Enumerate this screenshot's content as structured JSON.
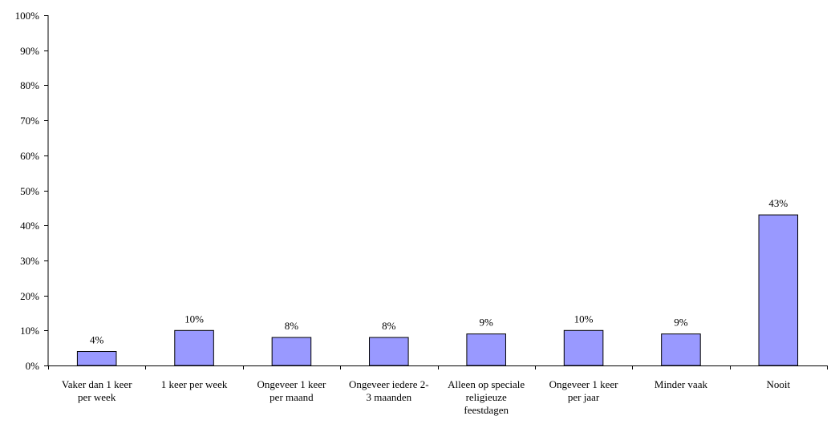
{
  "chart_data": {
    "type": "bar",
    "title": "",
    "xlabel": "",
    "ylabel": "",
    "ylim": [
      0,
      100
    ],
    "y_ticks": [
      "0%",
      "10%",
      "20%",
      "30%",
      "40%",
      "50%",
      "60%",
      "70%",
      "80%",
      "90%",
      "100%"
    ],
    "grid": false,
    "legend": "none",
    "bar_color": "#9999ff",
    "categories": [
      [
        "Vaker dan 1 keer",
        "per week"
      ],
      [
        "1 keer per week"
      ],
      [
        "Ongeveer 1 keer",
        "per maand"
      ],
      [
        "Ongeveer iedere 2-",
        "3 maanden"
      ],
      [
        "Alleen op speciale",
        "religieuze",
        "feestdagen"
      ],
      [
        "Ongeveer 1 keer",
        "per jaar"
      ],
      [
        "Minder vaak"
      ],
      [
        "Nooit"
      ]
    ],
    "values": [
      4,
      10,
      8,
      8,
      9,
      10,
      9,
      43
    ],
    "data_labels": [
      "4%",
      "10%",
      "8%",
      "8%",
      "9%",
      "10%",
      "9%",
      "43%"
    ]
  }
}
